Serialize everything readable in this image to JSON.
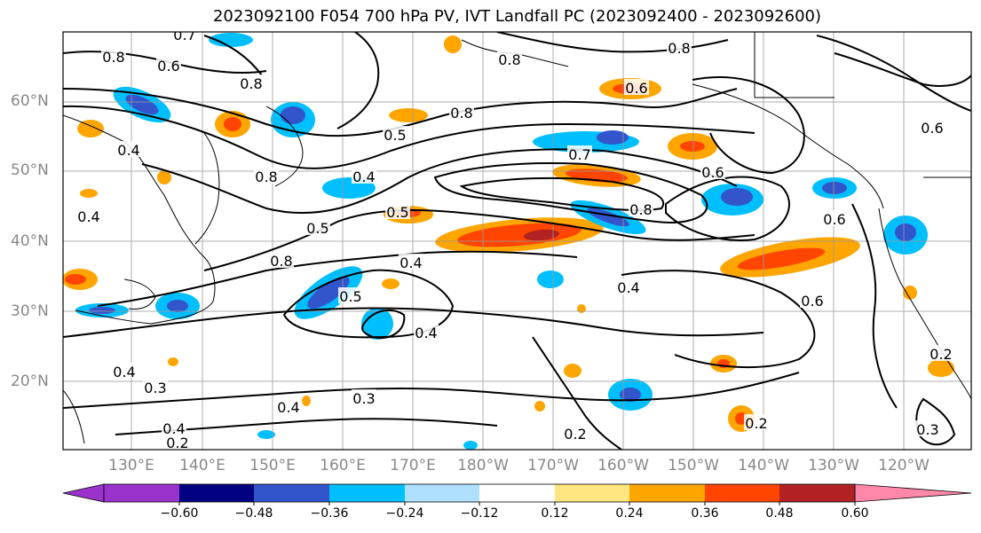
{
  "title": "2023092100 F054 700 hPa PV, IVT Landfall PC (2023092400 - 2023092600)",
  "lat_labels": [
    "60°N",
    "50°N",
    "40°N",
    "30°N",
    "20°N"
  ],
  "lon_labels": [
    "130°E",
    "140°E",
    "150°E",
    "160°E",
    "170°E",
    "180°W",
    "170°W",
    "160°W",
    "150°W",
    "140°W",
    "130°W",
    "120°W"
  ],
  "contour_labels": [
    "0.7",
    "0.8",
    "0.6",
    "0.8",
    "0.8",
    "0.8",
    "0.6",
    "0.8",
    "0.6",
    "0.4",
    "0.5",
    "0.4",
    "0.8",
    "0.7",
    "0.4",
    "0.6",
    "0.5",
    "0.8",
    "0.6",
    "0.8",
    "0.4",
    "0.5",
    "0.5",
    "0.4",
    "0.4",
    "0.6",
    "0.4",
    "0.3",
    "0.3",
    "0.4",
    "0.4",
    "0.2",
    "0.2",
    "0.2",
    "0.2",
    "0.3"
  ],
  "colorbar": {
    "tick_labels": [
      "−0.60",
      "−0.48",
      "−0.36",
      "−0.24",
      "−0.12",
      "0.12",
      "0.24",
      "0.36",
      "0.48",
      "0.60"
    ],
    "colors": [
      "#9933cc",
      "#000080",
      "#3355cc",
      "#00bfff",
      "#b0e0ff",
      "#ffffff",
      "#ffe680",
      "#ffa500",
      "#ff4500",
      "#b22222",
      "#ff88aa"
    ]
  },
  "fill_colors": {
    "neg_1": "#00bfff",
    "neg_2": "#3355cc",
    "neg_3": "#000080",
    "pos_1": "#ffa500",
    "pos_2": "#ff4500",
    "pos_3": "#b22222"
  }
}
